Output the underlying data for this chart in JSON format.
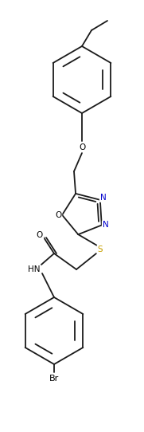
{
  "background_color": "#ffffff",
  "line_color": "#1a1a1a",
  "atom_label_colors": {
    "O": "#000000",
    "N": "#0000cd",
    "S": "#c8a000",
    "Br": "#000000",
    "HN": "#000000"
  },
  "line_width": 1.3,
  "font_size": 7.5,
  "figsize": [
    1.81,
    5.42
  ],
  "dpi": 100
}
